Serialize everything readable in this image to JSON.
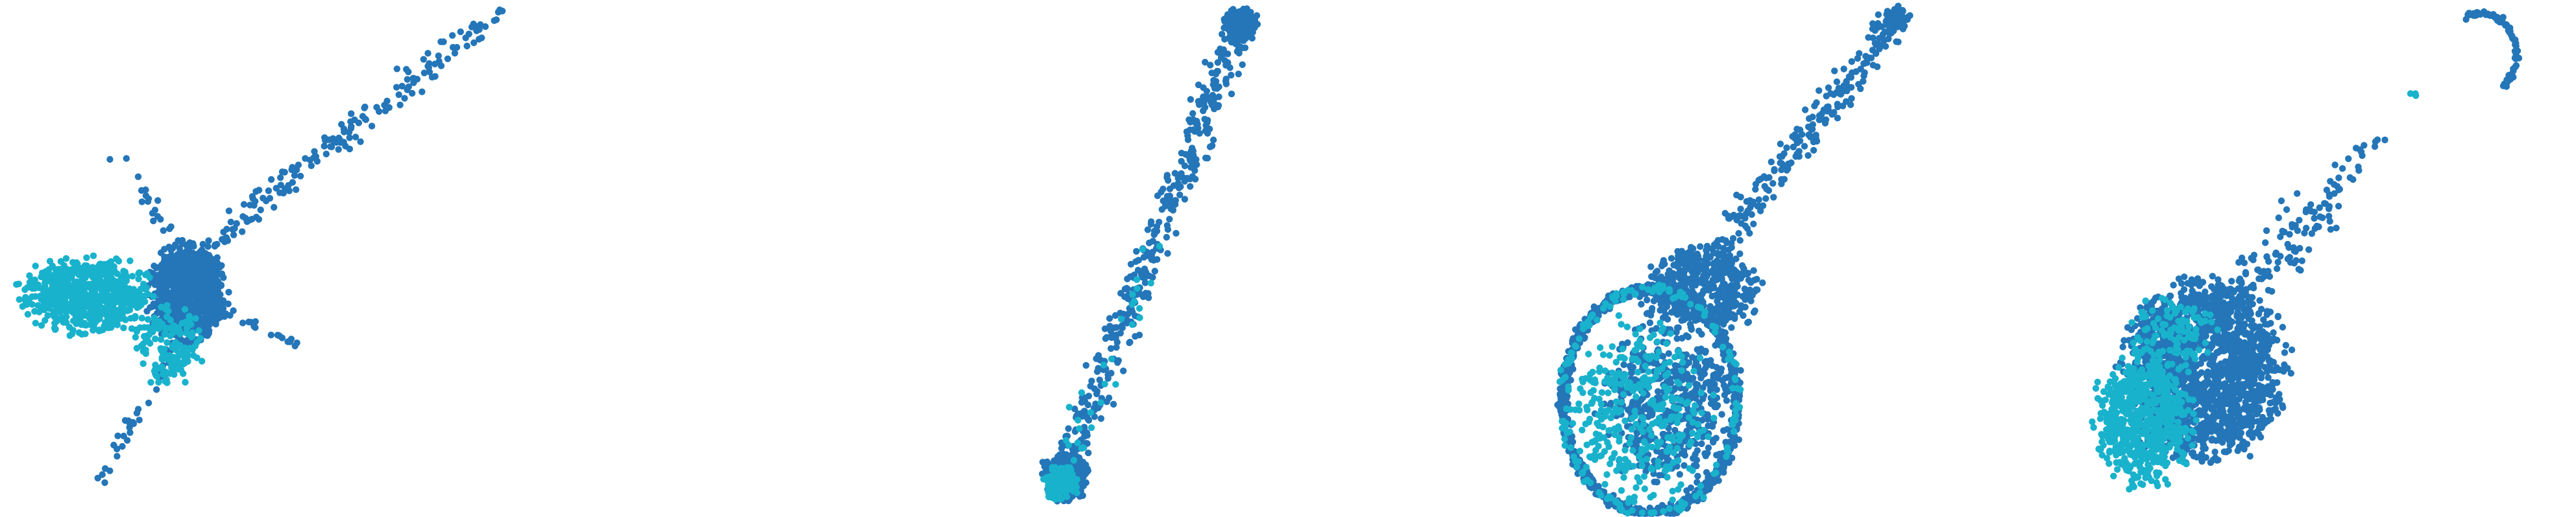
{
  "colors": {
    "series_a": "#2476b8",
    "series_b": "#19b2cc",
    "background": "#ffffff"
  },
  "chart_data": [
    {
      "type": "scatter",
      "xlim": [
        0,
        1
      ],
      "ylim": [
        0,
        1
      ],
      "grid": false,
      "legend": "none",
      "axes": "hidden",
      "series": [
        {
          "color": "#2476b8",
          "clusters": [
            {
              "kind": "blob",
              "cx": 0.36,
              "cy": 0.43,
              "rx": 0.085,
              "ry": 0.11,
              "n": 900
            },
            {
              "kind": "line",
              "x0": 0.3,
              "y0": 0.44,
              "x1": 0.97,
              "y1": 0.99,
              "n": 200,
              "spread": 0.013
            },
            {
              "kind": "line",
              "x0": 0.36,
              "y0": 0.38,
              "x1": 0.18,
              "y1": 0.05,
              "n": 45,
              "spread": 0.008
            },
            {
              "kind": "line",
              "x0": 0.38,
              "y0": 0.42,
              "x1": 0.58,
              "y1": 0.33,
              "n": 30,
              "spread": 0.006
            },
            {
              "kind": "line",
              "x0": 0.38,
              "y0": 0.47,
              "x1": 0.22,
              "y1": 0.71,
              "n": 25,
              "spread": 0.008
            }
          ]
        },
        {
          "color": "#19b2cc",
          "clusters": [
            {
              "kind": "blob",
              "cx": 0.16,
              "cy": 0.43,
              "rx": 0.14,
              "ry": 0.085,
              "n": 700
            },
            {
              "kind": "blob",
              "cx": 0.32,
              "cy": 0.33,
              "rx": 0.08,
              "ry": 0.09,
              "n": 150
            }
          ]
        }
      ]
    },
    {
      "type": "scatter",
      "xlim": [
        0,
        1
      ],
      "ylim": [
        0,
        1
      ],
      "grid": false,
      "legend": "none",
      "axes": "hidden",
      "series": [
        {
          "color": "#2476b8",
          "clusters": [
            {
              "kind": "blob",
              "cx": 0.06,
              "cy": 0.07,
              "rx": 0.05,
              "ry": 0.05,
              "n": 350
            },
            {
              "kind": "line",
              "x0": 0.05,
              "y0": 0.07,
              "x1": 0.4,
              "y1": 0.96,
              "n": 380,
              "spread": 0.016
            },
            {
              "kind": "blob",
              "cx": 0.4,
              "cy": 0.96,
              "rx": 0.04,
              "ry": 0.035,
              "n": 170
            }
          ]
        },
        {
          "color": "#19b2cc",
          "clusters": [
            {
              "kind": "blob",
              "cx": 0.05,
              "cy": 0.06,
              "rx": 0.04,
              "ry": 0.04,
              "n": 150
            },
            {
              "kind": "line",
              "x0": 0.05,
              "y0": 0.07,
              "x1": 0.25,
              "y1": 0.55,
              "n": 30,
              "spread": 0.015
            }
          ]
        }
      ]
    },
    {
      "type": "scatter",
      "xlim": [
        0,
        1
      ],
      "ylim": [
        0,
        1
      ],
      "grid": false,
      "legend": "none",
      "axes": "hidden",
      "series": [
        {
          "color": "#2476b8",
          "clusters": [
            {
              "kind": "ring",
              "cx": 0.2,
              "cy": 0.22,
              "rx": 0.17,
              "ry": 0.22,
              "n": 950
            },
            {
              "kind": "blob",
              "cx": 0.24,
              "cy": 0.22,
              "rx": 0.15,
              "ry": 0.19,
              "n": 500
            },
            {
              "kind": "blob",
              "cx": 0.3,
              "cy": 0.44,
              "rx": 0.13,
              "ry": 0.1,
              "n": 450
            },
            {
              "kind": "line",
              "x0": 0.3,
              "y0": 0.48,
              "x1": 0.68,
              "y1": 0.97,
              "n": 250,
              "spread": 0.014
            },
            {
              "kind": "blob",
              "cx": 0.68,
              "cy": 0.97,
              "rx": 0.03,
              "ry": 0.025,
              "n": 60
            }
          ]
        },
        {
          "color": "#19b2cc",
          "clusters": [
            {
              "kind": "blob",
              "cx": 0.18,
              "cy": 0.2,
              "rx": 0.16,
              "ry": 0.2,
              "n": 330
            },
            {
              "kind": "ring",
              "cx": 0.2,
              "cy": 0.22,
              "rx": 0.17,
              "ry": 0.22,
              "n": 150
            }
          ]
        }
      ]
    },
    {
      "type": "scatter",
      "xlim": [
        0,
        1
      ],
      "ylim": [
        0,
        1
      ],
      "grid": false,
      "legend": "none",
      "axes": "hidden",
      "series": [
        {
          "color": "#2476b8",
          "clusters": [
            {
              "kind": "blob",
              "cx": 0.28,
              "cy": 0.28,
              "rx": 0.18,
              "ry": 0.2,
              "n": 1700
            },
            {
              "kind": "line",
              "x0": 0.3,
              "y0": 0.4,
              "x1": 0.52,
              "y1": 0.6,
              "n": 110,
              "spread": 0.025
            },
            {
              "kind": "line",
              "x0": 0.48,
              "y0": 0.56,
              "x1": 0.62,
              "y1": 0.74,
              "n": 35,
              "spread": 0.012
            },
            {
              "kind": "arc",
              "cx": 0.82,
              "cy": 0.9,
              "rx": 0.07,
              "ry": 0.08,
              "a0": -0.9,
              "a1": 2.1,
              "n": 90
            }
          ]
        },
        {
          "color": "#19b2cc",
          "clusters": [
            {
              "kind": "blob",
              "cx": 0.16,
              "cy": 0.18,
              "rx": 0.11,
              "ry": 0.14,
              "n": 650
            },
            {
              "kind": "blob",
              "cx": 0.22,
              "cy": 0.35,
              "rx": 0.1,
              "ry": 0.1,
              "n": 120
            },
            {
              "kind": "blob",
              "cx": 0.69,
              "cy": 0.82,
              "rx": 0.01,
              "ry": 0.01,
              "n": 3
            }
          ]
        }
      ]
    }
  ]
}
